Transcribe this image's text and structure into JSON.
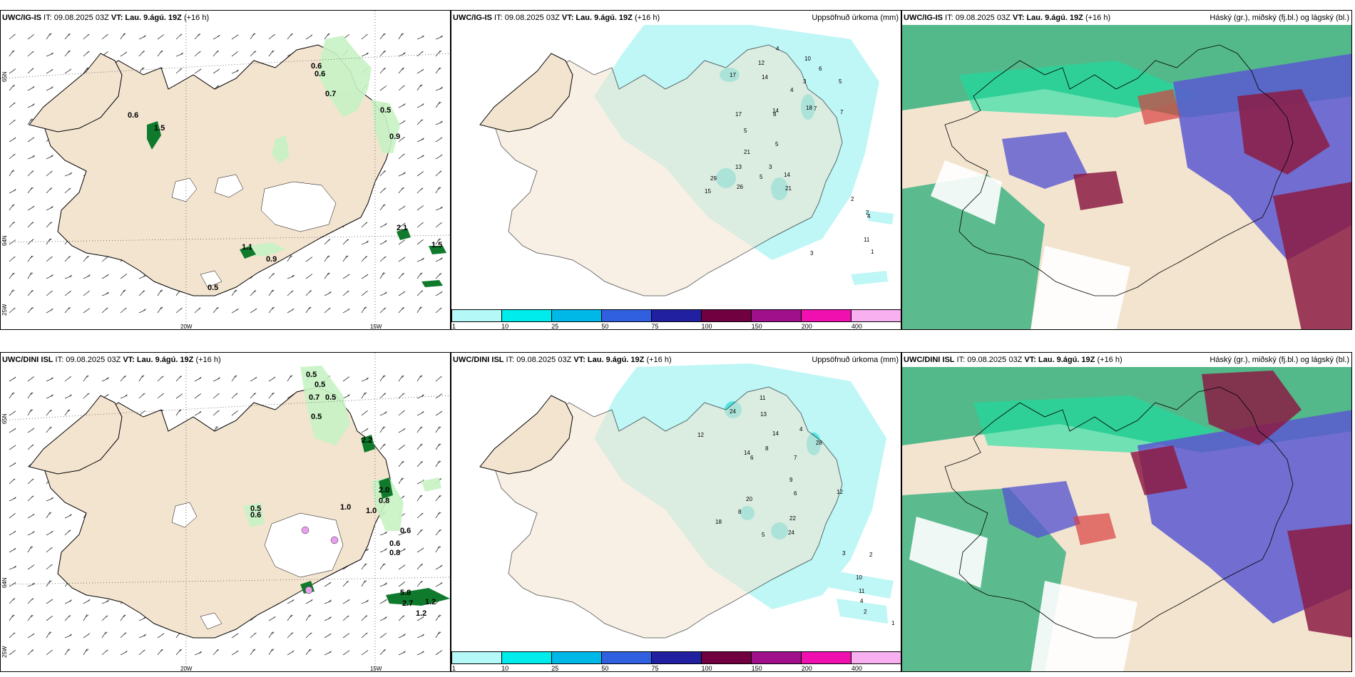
{
  "panels": [
    {
      "model": "UWC/IG-IS",
      "it": " IT: 09.08.2025 03Z ",
      "vt_label": "VT:",
      "vt": " Lau. 9.ágú. 19Z",
      "lead": " (+16 h)",
      "right": ""
    },
    {
      "model": "UWC/IG-IS",
      "it": " IT: 09.08.2025 03Z ",
      "vt_label": "VT:",
      "vt": " Lau. 9.ágú. 19Z",
      "lead": " (+16 h)",
      "right": "Uppsöfnuð úrkoma (mm)"
    },
    {
      "model": "UWC/IG-IS",
      "it": " IT: 09.08.2025 03Z ",
      "vt_label": "VT:",
      "vt": " Lau. 9.ágú. 19Z",
      "lead": " (+16 h)",
      "right": "Háský (gr.), miðský (fj.bl.) og lágský (bl.)"
    },
    {
      "model": "UWC/DINI ISL",
      "it": " IT: 09.08.2025 03Z ",
      "vt_label": "VT:",
      "vt": " Lau. 9.ágú. 19Z",
      "lead": " (+16 h)",
      "right": ""
    },
    {
      "model": "UWC/DINI ISL",
      "it": " IT: 09.08.2025 03Z ",
      "vt_label": "VT:",
      "vt": " Lau. 9.ágú. 19Z",
      "lead": " (+16 h)",
      "right": "Uppsöfnuð úrkoma (mm)"
    },
    {
      "model": "UWC/DINI ISL",
      "it": " IT: 09.08.2025 03Z ",
      "vt_label": "VT:",
      "vt": " Lau. 9.ágú. 19Z",
      "lead": " (+16 h)",
      "right": "Háský (gr.), miðský (fj.bl.) og lágský (bl.)"
    }
  ],
  "axes": {
    "lon_20": "20W",
    "lon_15": "15W",
    "lat_65": "65N",
    "lat_64": "64N",
    "lon_25": "25W"
  },
  "colorbar": {
    "colors": [
      "#b4f8f8",
      "#00ecec",
      "#00b8e8",
      "#3060e0",
      "#2020a0",
      "#700040",
      "#a0108a",
      "#f010b0",
      "#f8b0f0"
    ],
    "ticks": [
      "1",
      "10",
      "25",
      "50",
      "75",
      "100",
      "150",
      "200",
      "400"
    ]
  },
  "wind_top": [
    "0.6",
    "0.6",
    "0.7",
    "0.6",
    "1.5",
    "0.5",
    "0.9",
    "2.1",
    "1.5",
    "0.9",
    "0.5",
    "1.1"
  ],
  "wind_bottom": [
    "0.5",
    "0.5",
    "0.7",
    "0.5",
    "0.5",
    "2.2",
    "1.0",
    "0.5",
    "0.6",
    "2.0",
    "0.8",
    "1.0",
    "0.6",
    "0.6",
    "0.8",
    "5.8",
    "2.7",
    "1.2",
    "1.2"
  ],
  "precip_top": [
    "17",
    "12",
    "14",
    "4",
    "10",
    "7",
    "4",
    "6",
    "3",
    "7",
    "5",
    "18",
    "14",
    "17",
    "8",
    "5",
    "21",
    "13",
    "5",
    "3",
    "14",
    "29",
    "26",
    "15",
    "21",
    "11",
    "2",
    "1",
    "2",
    "3",
    "4",
    "5"
  ],
  "precip_bottom": [
    "24",
    "13",
    "11",
    "14",
    "4",
    "8",
    "6",
    "12",
    "28",
    "20",
    "7",
    "14",
    "18",
    "8",
    "24",
    "9",
    "22",
    "5",
    "6",
    "12",
    "10",
    "11",
    "4",
    "2",
    "1",
    "3",
    "2"
  ],
  "colors": {
    "land": "#f3e4d0",
    "light_green": "#c8f2c4",
    "dark_green": "#0f7a2c",
    "precip_light": "#bff6f6",
    "precip_mid": "#3cdede",
    "cloud_green": "#2aae78",
    "cloud_mint": "#18e0a0",
    "cloud_blue": "#5a58d0",
    "cloud_maroon": "#8b1c44",
    "cloud_red": "#d84040"
  }
}
